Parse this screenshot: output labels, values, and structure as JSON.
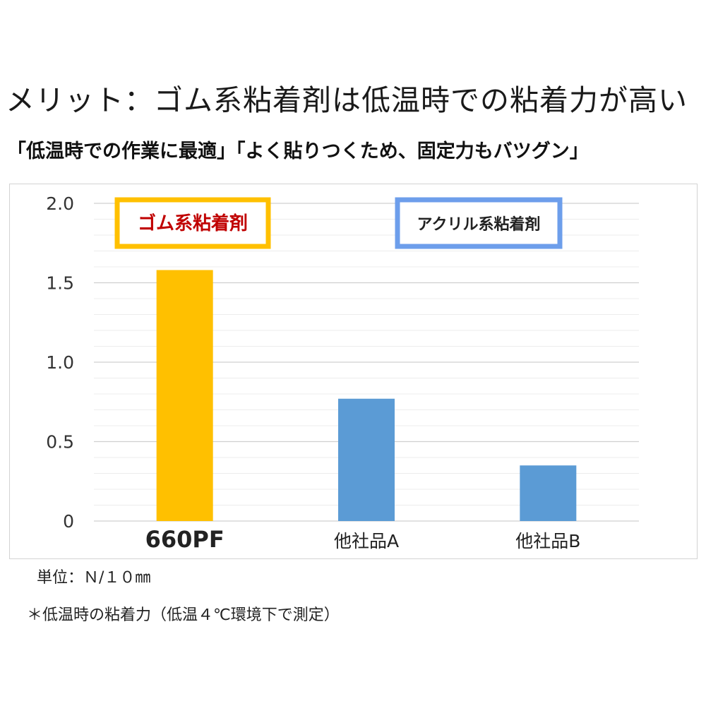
{
  "headline": "メリット：ゴム系粘着剤は低温時での粘着力が高い",
  "subline": "「低温時での作業に最適」「よく貼りつくため、固定力もバツグン」",
  "chart_data": {
    "type": "bar",
    "categories": [
      "660PF",
      "他社品A",
      "他社品B"
    ],
    "values": [
      1.58,
      0.77,
      0.35
    ],
    "bar_colors": [
      "#FFC000",
      "#5B9BD5",
      "#5B9BD5"
    ],
    "ylim": [
      0,
      2.0
    ],
    "yticks": [
      "0",
      "0.5",
      "1.0",
      "1.5",
      "2.0"
    ],
    "grid": true,
    "legend": [
      {
        "label": "ゴム系粘着剤",
        "border_color": "#FFC000",
        "text_color": "#C00000"
      },
      {
        "label": "アクリル系粘着剤",
        "border_color": "#6D9EEB",
        "text_color": "#222222"
      }
    ]
  },
  "notes": {
    "unit": "単位：Ｎ/１０㎜",
    "condition": "＊低温時の粘着力（低温４℃環境下で測定）"
  }
}
